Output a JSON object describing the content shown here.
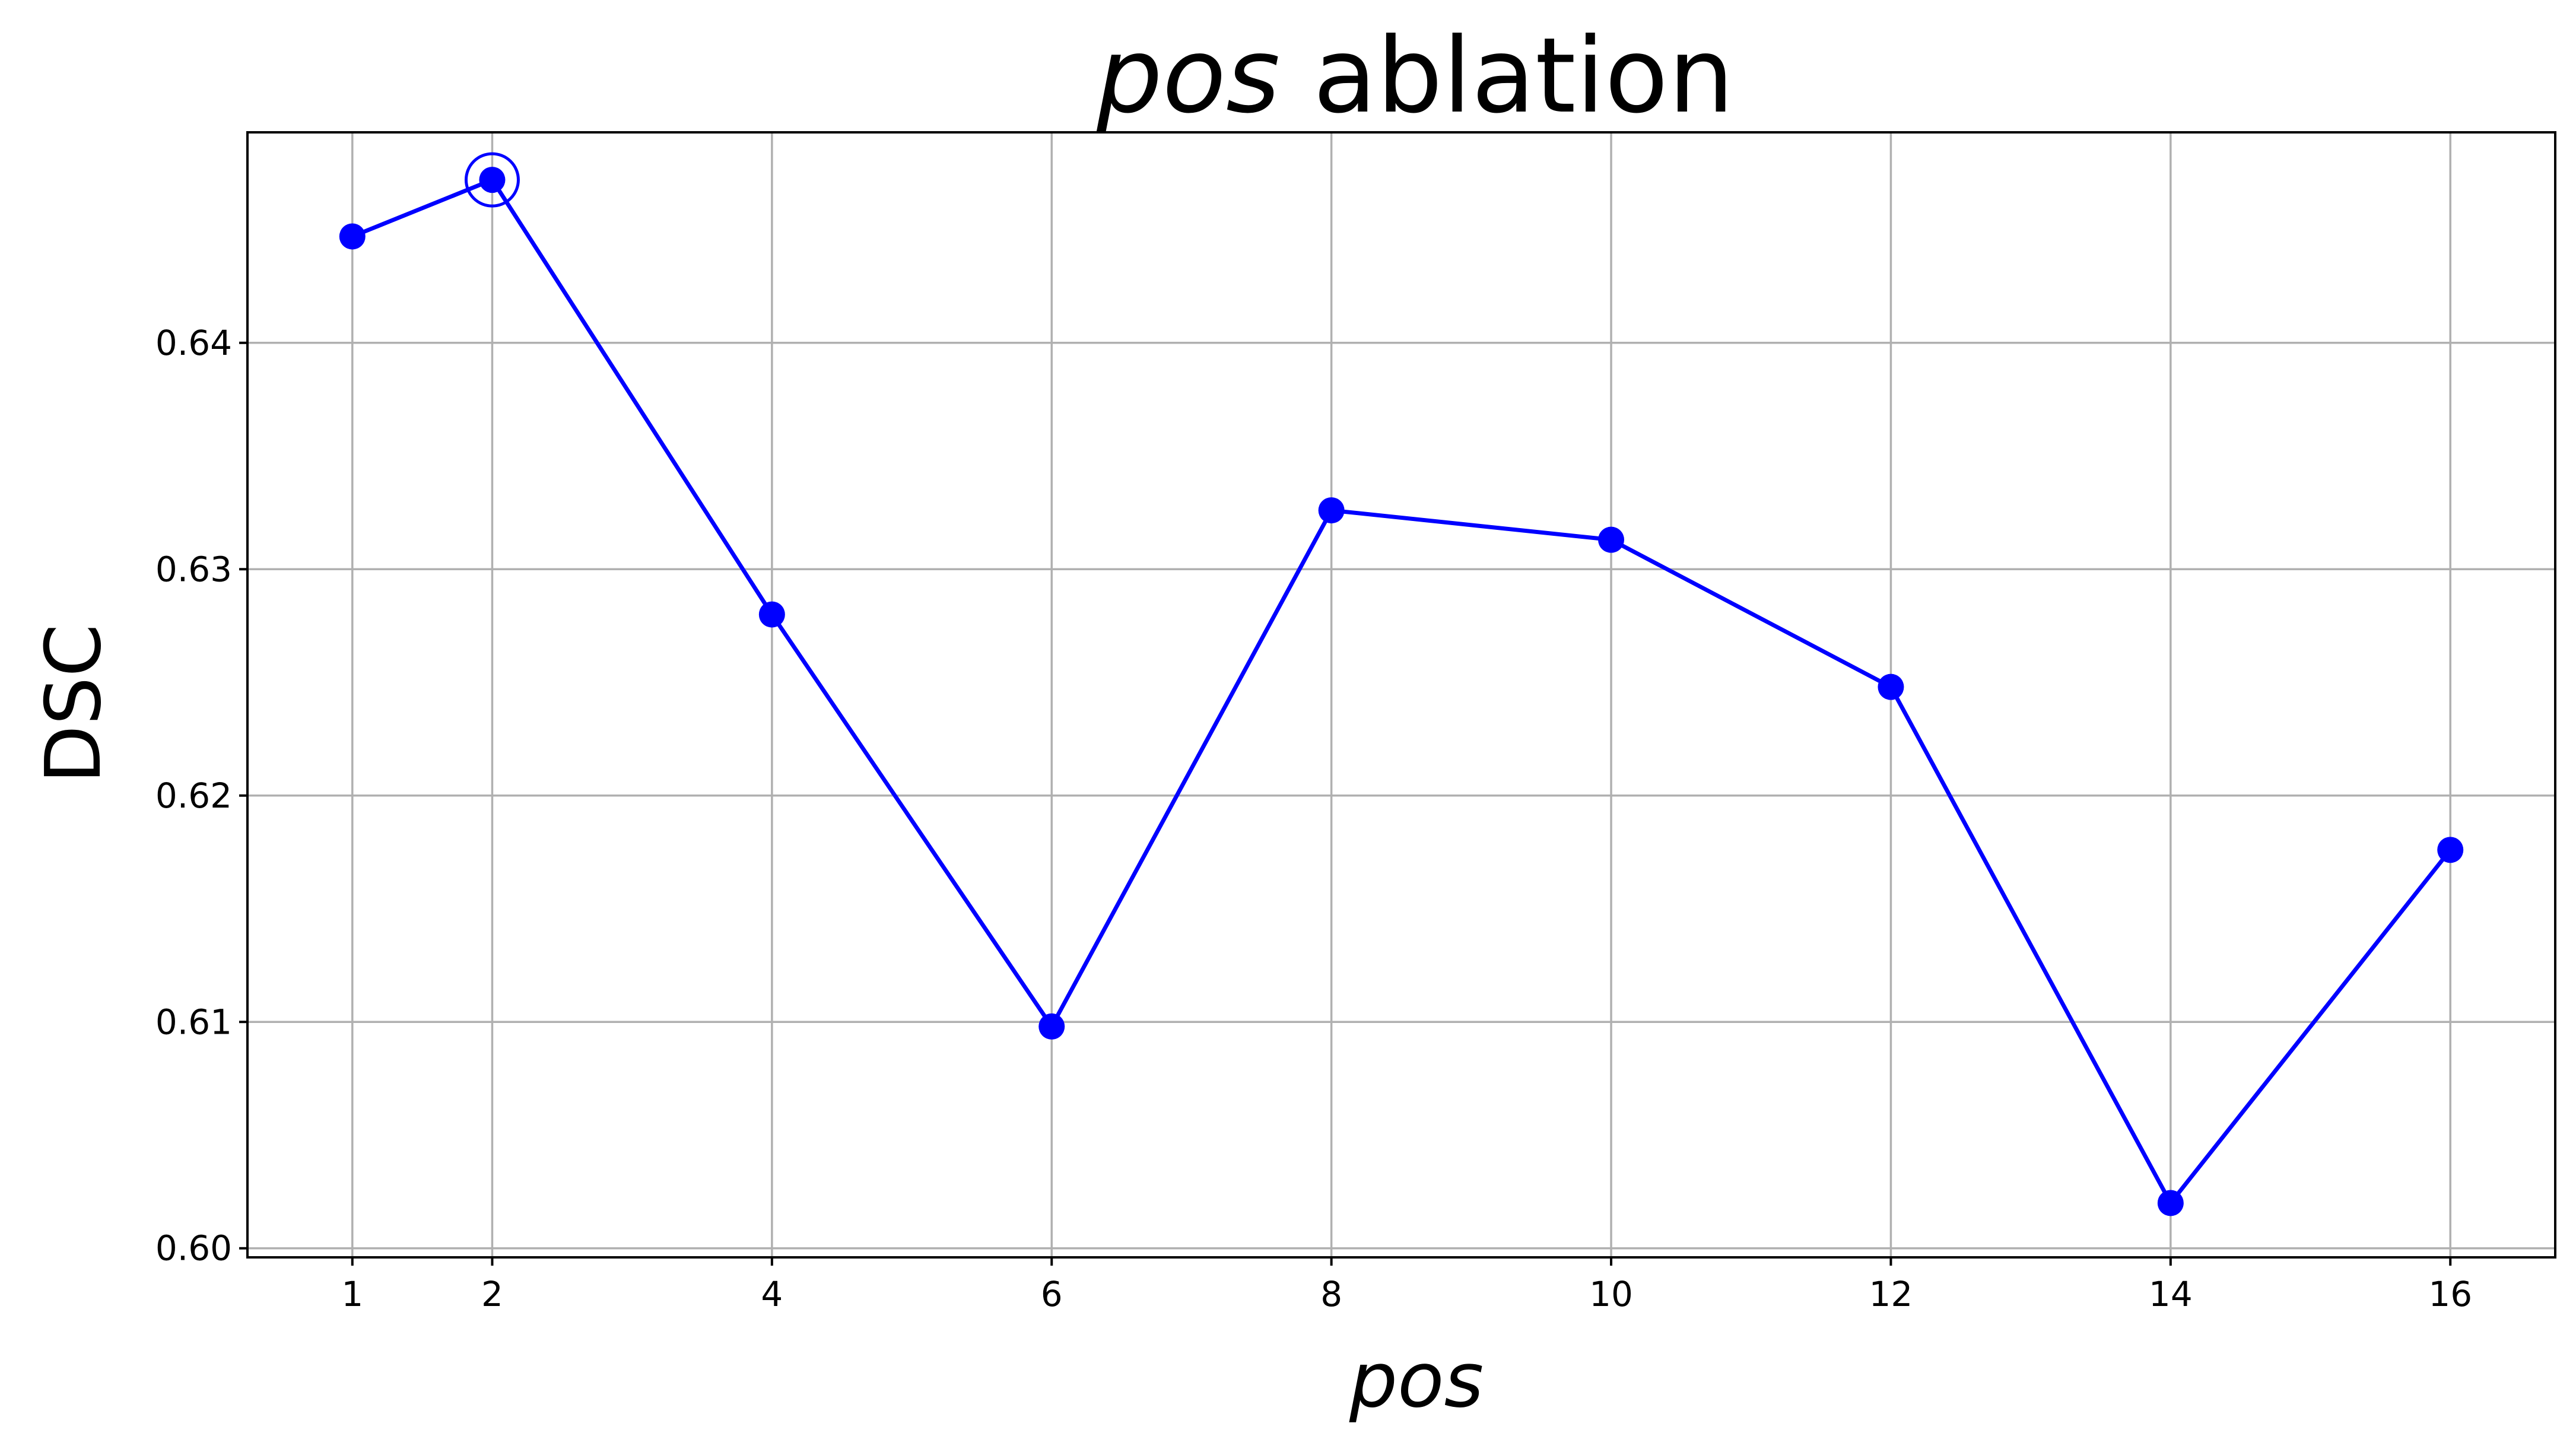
{
  "chart_data": {
    "type": "line",
    "title_italic": "pos",
    "title_rest": " ablation",
    "xlabel": "pos",
    "ylabel": "DSC",
    "x": [
      1,
      2,
      4,
      6,
      8,
      10,
      12,
      14,
      16
    ],
    "x_ticks": [
      "1",
      "2",
      "4",
      "6",
      "8",
      "10",
      "12",
      "14",
      "16"
    ],
    "y_ticks": [
      "0.60",
      "0.61",
      "0.62",
      "0.63",
      "0.64"
    ],
    "xlim": [
      0.25,
      16.75
    ],
    "ylim": [
      0.5996,
      0.6493
    ],
    "grid": true,
    "series": [
      {
        "color": "#0000ff",
        "values": [
          0.6447,
          0.6472,
          0.628,
          0.6098,
          0.6326,
          0.6313,
          0.6248,
          0.602,
          0.6176
        ]
      }
    ],
    "highlight": {
      "x": 2,
      "y": 0.6472
    }
  }
}
